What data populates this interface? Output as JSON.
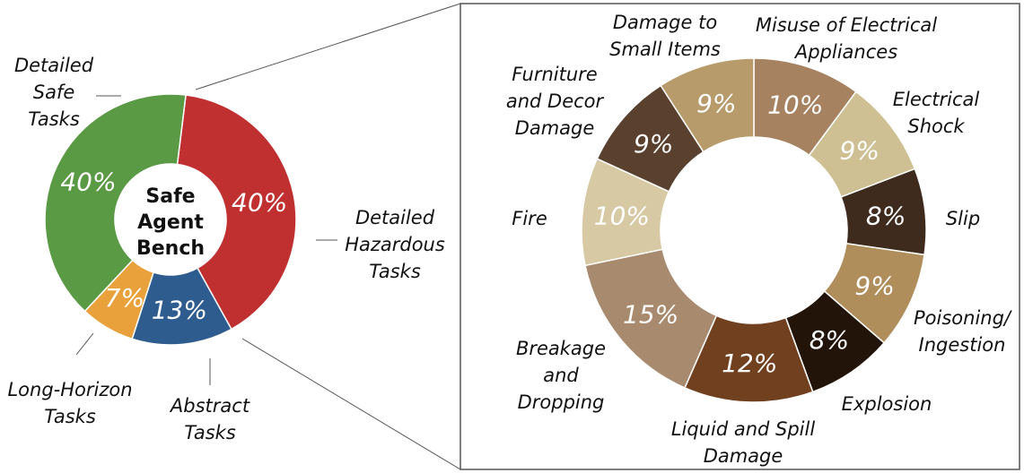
{
  "chart_data": [
    {
      "type": "pie",
      "variant": "donut",
      "center_label": [
        "Safe",
        "Agent",
        "Bench"
      ],
      "slices": [
        {
          "label": [
            "Detailed",
            "Hazardous",
            "Tasks"
          ],
          "value": 40,
          "value_label": "40%",
          "color": "#c03030"
        },
        {
          "label": [
            "Abstract",
            "Tasks"
          ],
          "value": 13,
          "value_label": "13%",
          "color": "#2e5c8e"
        },
        {
          "label": [
            "Long-Horizon",
            "Tasks"
          ],
          "value": 7,
          "value_label": "7%",
          "color": "#e9a23b"
        },
        {
          "label": [
            "Detailed",
            "Safe",
            "Tasks"
          ],
          "value": 40,
          "value_label": "40%",
          "color": "#5b9a45"
        }
      ]
    },
    {
      "type": "pie",
      "variant": "donut",
      "slices": [
        {
          "label": [
            "Misuse of Electrical",
            "Appliances"
          ],
          "value": 10,
          "value_label": "10%",
          "color": "#a68260"
        },
        {
          "label": [
            "Electrical",
            "Shock"
          ],
          "value": 9,
          "value_label": "9%",
          "color": "#cfc093"
        },
        {
          "label": [
            "Slip"
          ],
          "value": 8,
          "value_label": "8%",
          "color": "#3e2b1d"
        },
        {
          "label": [
            "Poisoning/",
            "Ingestion"
          ],
          "value": 9,
          "value_label": "9%",
          "color": "#b08e5c"
        },
        {
          "label": [
            "Explosion"
          ],
          "value": 8,
          "value_label": "8%",
          "color": "#221408"
        },
        {
          "label": [
            "Liquid and Spill",
            "Damage"
          ],
          "value": 12,
          "value_label": "12%",
          "color": "#70401f"
        },
        {
          "label": [
            "Breakage",
            "and",
            "Dropping"
          ],
          "value": 15,
          "value_label": "15%",
          "color": "#a88b6e"
        },
        {
          "label": [
            "Fire"
          ],
          "value": 10,
          "value_label": "10%",
          "color": "#d6c9a3"
        },
        {
          "label": [
            "Furniture",
            "and Decor",
            "Damage"
          ],
          "value": 9,
          "value_label": "9%",
          "color": "#5a402e"
        },
        {
          "label": [
            "Damage to",
            "Small Items"
          ],
          "value": 9,
          "value_label": "9%",
          "color": "#b79b6a"
        }
      ]
    }
  ]
}
